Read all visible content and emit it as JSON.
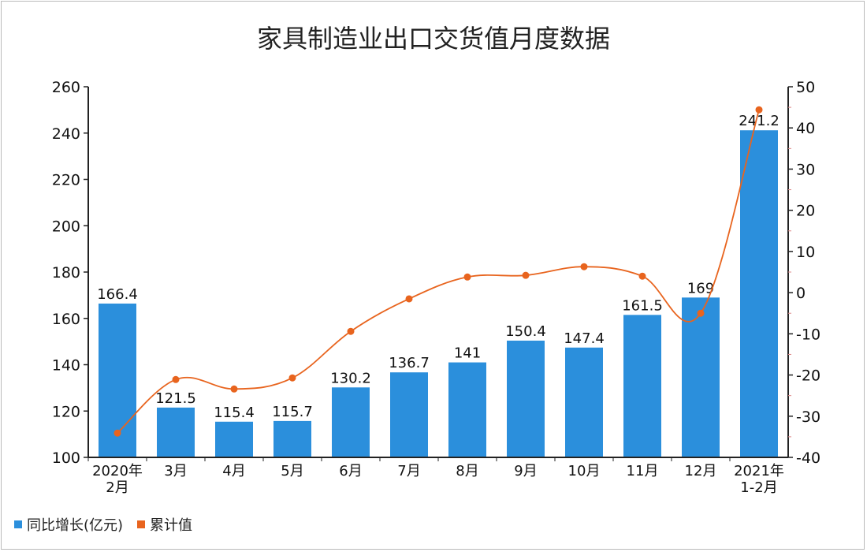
{
  "chart_data": {
    "type": "bar+line",
    "title": "家具制造业出口交货值月度数据",
    "categories": [
      "2020年\n2月",
      "3月",
      "4月",
      "5月",
      "6月",
      "7月",
      "8月",
      "9月",
      "10月",
      "11月",
      "12月",
      "2021年\n1-2月"
    ],
    "series": [
      {
        "name": "同比增长(亿元)",
        "type": "bar",
        "axis": "left",
        "color": "#2b8fdc",
        "values": [
          166.4,
          121.5,
          115.4,
          115.7,
          130.2,
          136.7,
          141,
          150.4,
          147.4,
          161.5,
          169,
          241.2
        ],
        "labels": [
          "166.4",
          "121.5",
          "115.4",
          "115.7",
          "130.2",
          "136.7",
          "141",
          "150.4",
          "147.4",
          "161.5",
          "169",
          "241.2"
        ]
      },
      {
        "name": "累计值",
        "type": "line",
        "axis": "right",
        "color": "#e8641e",
        "values": [
          -34.1,
          -21.1,
          -23.4,
          -20.7,
          -9.4,
          -1.5,
          3.8,
          4.2,
          6.3,
          4.0,
          -5.0,
          44.4
        ]
      }
    ],
    "left_axis": {
      "min": 100,
      "max": 260,
      "ticks": [
        "100",
        "120",
        "140",
        "160",
        "180",
        "200",
        "220",
        "240",
        "260"
      ]
    },
    "right_axis": {
      "min": -40,
      "max": 50,
      "ticks": [
        "-40",
        "-30",
        "-20",
        "-10",
        "0",
        "10",
        "20",
        "30",
        "40",
        "50"
      ]
    },
    "legend_position": "bottom-left"
  }
}
